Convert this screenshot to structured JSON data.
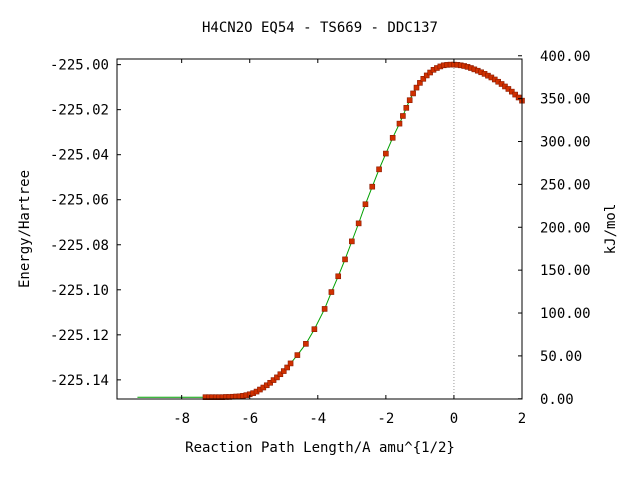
{
  "chart_data": {
    "type": "scatter",
    "title": "H4CN2O   EQ54 - TS669 - DDC137",
    "xlabel": "Reaction Path Length/A amu^{1/2}",
    "ylabel": "Energy/Hartree",
    "y2label": "kJ/mol",
    "xlim": [
      -9.9,
      2.0
    ],
    "ylim": [
      -225.1485,
      -224.9975
    ],
    "y2lim": [
      -0.27,
      396.23
    ],
    "x_ticks": [
      -8,
      -6,
      -4,
      -2,
      0,
      2
    ],
    "x_tick_labels": [
      "-8",
      "-6",
      "-4",
      "-2",
      "0",
      "2"
    ],
    "y_ticks": [
      -225.0,
      -225.02,
      -225.04,
      -225.06,
      -225.08,
      -225.1,
      -225.12,
      -225.14
    ],
    "y_tick_labels": [
      "-225.00",
      "-225.02",
      "-225.04",
      "-225.06",
      "-225.08",
      "-225.10",
      "-225.12",
      "-225.14"
    ],
    "y2_ticks": [
      400,
      350,
      300,
      250,
      200,
      150,
      100,
      50,
      0
    ],
    "y2_tick_labels": [
      "400.00",
      "350.00",
      "300.00",
      "250.00",
      "200.00",
      "150.00",
      "100.00",
      "50.00",
      "0.00"
    ],
    "ts_marker_x": 0,
    "grid": false,
    "colors": {
      "line": "#00a000",
      "marker_fill": "#d03000",
      "marker_edge": "#8b1a00",
      "ts_line": "#999999",
      "axis": "#000000"
    },
    "series": [
      {
        "line_x": [
          -9.3,
          -7.3
        ],
        "line_y": [
          -225.1477,
          -225.1477
        ],
        "x": [
          -7.3,
          -7.2,
          -7.1,
          -7.0,
          -6.9,
          -6.8,
          -6.7,
          -6.6,
          -6.5,
          -6.4,
          -6.3,
          -6.2,
          -6.1,
          -6.0,
          -5.9,
          -5.8,
          -5.7,
          -5.6,
          -5.5,
          -5.4,
          -5.3,
          -5.2,
          -5.1,
          -5.0,
          -4.9,
          -4.8,
          -4.6,
          -4.35,
          -4.1,
          -3.8,
          -3.6,
          -3.4,
          -3.2,
          -3.0,
          -2.8,
          -2.6,
          -2.4,
          -2.2,
          -2.0,
          -1.8,
          -1.6,
          -1.5,
          -1.4,
          -1.3,
          -1.2,
          -1.1,
          -1.0,
          -0.9,
          -0.8,
          -0.7,
          -0.6,
          -0.5,
          -0.4,
          -0.3,
          -0.2,
          -0.1,
          0.0,
          0.1,
          0.2,
          0.3,
          0.4,
          0.5,
          0.6,
          0.7,
          0.8,
          0.9,
          1.0,
          1.1,
          1.2,
          1.3,
          1.4,
          1.5,
          1.6,
          1.7,
          1.8,
          1.9,
          2.0
        ],
        "y": [
          -225.1477,
          -225.1477,
          -225.1477,
          -225.1477,
          -225.1477,
          -225.1477,
          -225.1476,
          -225.1476,
          -225.1475,
          -225.1474,
          -225.1473,
          -225.1471,
          -225.1468,
          -225.1464,
          -225.1459,
          -225.1452,
          -225.1443,
          -225.1434,
          -225.1424,
          -225.1413,
          -225.1401,
          -225.1389,
          -225.1375,
          -225.1361,
          -225.1345,
          -225.1327,
          -225.129,
          -225.124,
          -225.1175,
          -225.1085,
          -225.101,
          -225.094,
          -225.0865,
          -225.0785,
          -225.0705,
          -225.062,
          -225.0542,
          -225.0465,
          -225.0395,
          -225.0325,
          -225.0262,
          -225.0228,
          -225.0192,
          -225.0158,
          -225.0128,
          -225.0102,
          -225.0081,
          -225.0063,
          -225.0048,
          -225.0035,
          -225.0023,
          -225.0015,
          -225.0008,
          -225.0003,
          -225.0001,
          -225.0,
          -225.0,
          -225.0001,
          -225.0003,
          -225.0006,
          -225.001,
          -225.0015,
          -225.0021,
          -225.0027,
          -225.0034,
          -225.0041,
          -225.0049,
          -225.0057,
          -225.0066,
          -225.0076,
          -225.0086,
          -225.0097,
          -225.0108,
          -225.012,
          -225.0133,
          -225.0146,
          -225.016
        ]
      }
    ]
  }
}
